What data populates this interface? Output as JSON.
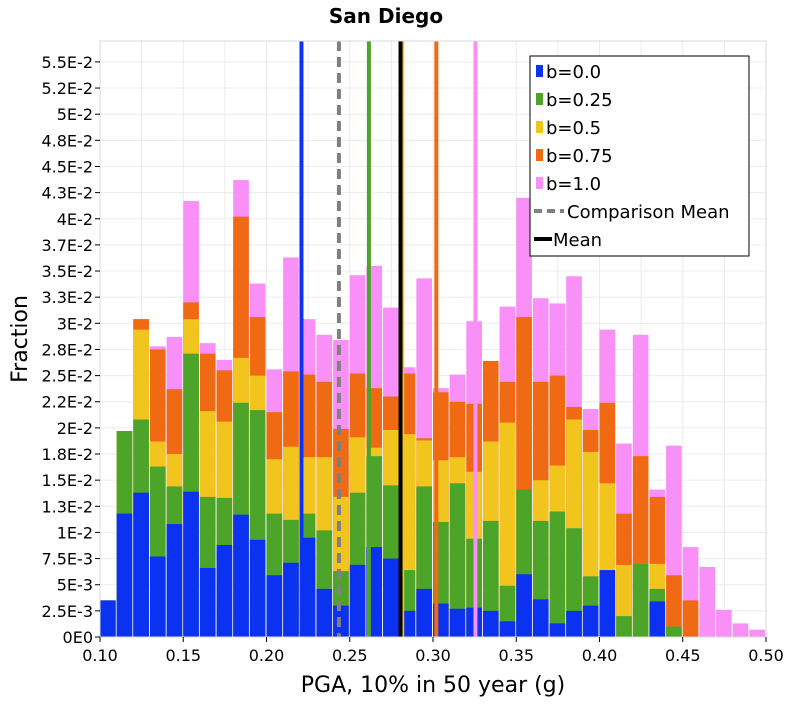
{
  "chart_data": {
    "type": "bar",
    "stacked": true,
    "title": "San Diego",
    "xlabel": "PGA, 10% in 50 year (g)",
    "ylabel": "Fraction",
    "xlim": [
      0.1,
      0.5
    ],
    "ylim": [
      0,
      0.057
    ],
    "bin_width": 0.01,
    "x_ticks": [
      0.1,
      0.15,
      0.2,
      0.25,
      0.3,
      0.35,
      0.4,
      0.45,
      0.5
    ],
    "x_tick_labels": [
      "0.10",
      "0.15",
      "0.20",
      "0.25",
      "0.30",
      "0.35",
      "0.40",
      "0.45",
      "0.50"
    ],
    "y_ticks": [
      0,
      0.0025,
      0.005,
      0.0075,
      0.01,
      0.0125,
      0.015,
      0.0175,
      0.02,
      0.0225,
      0.025,
      0.0275,
      0.03,
      0.0325,
      0.035,
      0.0375,
      0.04,
      0.0425,
      0.045,
      0.0475,
      0.05,
      0.0525,
      0.055
    ],
    "y_tick_labels": [
      "0E0",
      "2.5E-3",
      "5E-3",
      "7.5E-3",
      "1E-2",
      "1.3E-2",
      "1.5E-2",
      "1.8E-2",
      "2E-2",
      "2.2E-2",
      "2.5E-2",
      "2.8E-2",
      "3E-2",
      "3.3E-2",
      "3.5E-2",
      "3.7E-2",
      "4E-2",
      "4.3E-2",
      "4.5E-2",
      "4.8E-2",
      "5E-2",
      "5.2E-2",
      "5.5E-2"
    ],
    "bins": [
      0.1,
      0.11,
      0.12,
      0.13,
      0.14,
      0.15,
      0.16,
      0.17,
      0.18,
      0.19,
      0.2,
      0.21,
      0.22,
      0.23,
      0.24,
      0.25,
      0.26,
      0.27,
      0.28,
      0.29,
      0.3,
      0.31,
      0.32,
      0.33,
      0.34,
      0.35,
      0.36,
      0.37,
      0.38,
      0.39,
      0.4,
      0.41,
      0.42,
      0.43,
      0.44,
      0.45,
      0.46,
      0.47,
      0.48,
      0.49
    ],
    "series": [
      {
        "name": "b=0.0",
        "color": "#0a32f0",
        "cumulative": [
          0.0035,
          0.0118,
          0.0138,
          0.0077,
          0.0108,
          0.0139,
          0.0066,
          0.0088,
          0.0117,
          0.0093,
          0.0059,
          0.0071,
          0.0095,
          0.0046,
          0.003,
          0.0069,
          0.0086,
          0.0075,
          0.0025,
          0.0046,
          0.0032,
          0.0027,
          0.0028,
          0.0025,
          0.0015,
          0.006,
          0.0036,
          0.0013,
          0.0025,
          0.003,
          0.0064,
          0,
          0,
          0.0034,
          0,
          0,
          0,
          0,
          0,
          0
        ]
      },
      {
        "name": "b=0.25",
        "color": "#4ca429",
        "cumulative": [
          0.0035,
          0.0197,
          0.0208,
          0.0163,
          0.0144,
          0.0271,
          0.0134,
          0.0133,
          0.0224,
          0.0217,
          0.0118,
          0.0112,
          0.0118,
          0.0102,
          0.0063,
          0.0138,
          0.0173,
          0.0145,
          0.0064,
          0.0144,
          0.011,
          0.0147,
          0.0094,
          0.0111,
          0.0049,
          0.0141,
          0.0111,
          0.012,
          0.0104,
          0.0058,
          0.0064,
          0.002,
          0.007,
          0.0046,
          0.001,
          0,
          0,
          0,
          0,
          0
        ]
      },
      {
        "name": "b=0.5",
        "color": "#f2c41e",
        "cumulative": [
          0.0035,
          0.0197,
          0.0294,
          0.0187,
          0.0175,
          0.0304,
          0.0216,
          0.0206,
          0.0267,
          0.025,
          0.017,
          0.0182,
          0.0172,
          0.0172,
          0.0134,
          0.0191,
          0.0181,
          0.0198,
          0.0194,
          0.0188,
          0.0169,
          0.0172,
          0.0158,
          0.0187,
          0.0205,
          0.0137,
          0.015,
          0.0164,
          0.0208,
          0.0177,
          0.0147,
          0.0069,
          0.007,
          0.007,
          0.001,
          0,
          0,
          0,
          0,
          0
        ]
      },
      {
        "name": "b=0.75",
        "color": "#f06a14",
        "cumulative": [
          0.0035,
          0.0197,
          0.0304,
          0.0275,
          0.0237,
          0.032,
          0.0271,
          0.0255,
          0.0402,
          0.0306,
          0.0215,
          0.0254,
          0.0251,
          0.0244,
          0.0199,
          0.0252,
          0.0238,
          0.023,
          0.0252,
          0.019,
          0.0234,
          0.0225,
          0.0223,
          0.0264,
          0.0244,
          0.0306,
          0.0244,
          0.025,
          0.022,
          0.0198,
          0.0224,
          0.0118,
          0.0173,
          0.0134,
          0.0059,
          0.0035,
          0,
          0,
          0,
          0
        ]
      },
      {
        "name": "b=1.0",
        "color": "#f890f8",
        "cumulative": [
          0.0035,
          0.0197,
          0.0304,
          0.0278,
          0.0287,
          0.0417,
          0.0281,
          0.0265,
          0.0437,
          0.0338,
          0.0256,
          0.0363,
          0.0304,
          0.0289,
          0.0284,
          0.0346,
          0.0355,
          0.0315,
          0.0258,
          0.0343,
          0.0238,
          0.0251,
          0.0302,
          0.0232,
          0.0316,
          0.042,
          0.0324,
          0.0319,
          0.0345,
          0.0218,
          0.0294,
          0.0185,
          0.0289,
          0.0141,
          0.0183,
          0.0086,
          0.0067,
          0.0026,
          0.0013,
          0.0007
        ]
      }
    ],
    "vertical_lines": [
      {
        "name": "b=0.0 mean",
        "x": 0.221,
        "color": "#0a32f0",
        "style": "solid"
      },
      {
        "name": "Comparison Mean",
        "x": 0.2435,
        "color": "#808080",
        "style": "dashed"
      },
      {
        "name": "b=0.25 mean",
        "x": 0.2615,
        "color": "#4ca429",
        "style": "solid"
      },
      {
        "name": "b=0.5 mean",
        "x": 0.2815,
        "color": "#f2c41e",
        "style": "solid"
      },
      {
        "name": "Mean",
        "x": 0.2805,
        "color": "#000000",
        "style": "solid"
      },
      {
        "name": "b=0.75 mean",
        "x": 0.302,
        "color": "#f06a14",
        "style": "solid"
      },
      {
        "name": "b=1.0 mean",
        "x": 0.3255,
        "color": "#f890f8",
        "style": "solid"
      }
    ],
    "legend": {
      "position": "top-right",
      "entries": [
        {
          "label": "b=0.0",
          "color": "#0a32f0",
          "kind": "box"
        },
        {
          "label": "b=0.25",
          "color": "#4ca429",
          "kind": "box"
        },
        {
          "label": "b=0.5",
          "color": "#f2c41e",
          "kind": "box"
        },
        {
          "label": "b=0.75",
          "color": "#f06a14",
          "kind": "box"
        },
        {
          "label": "b=1.0",
          "color": "#f890f8",
          "kind": "box"
        },
        {
          "label": "Comparison Mean",
          "color": "#808080",
          "kind": "dashed"
        },
        {
          "label": "Mean",
          "color": "#000000",
          "kind": "line"
        }
      ]
    },
    "grid": true
  }
}
